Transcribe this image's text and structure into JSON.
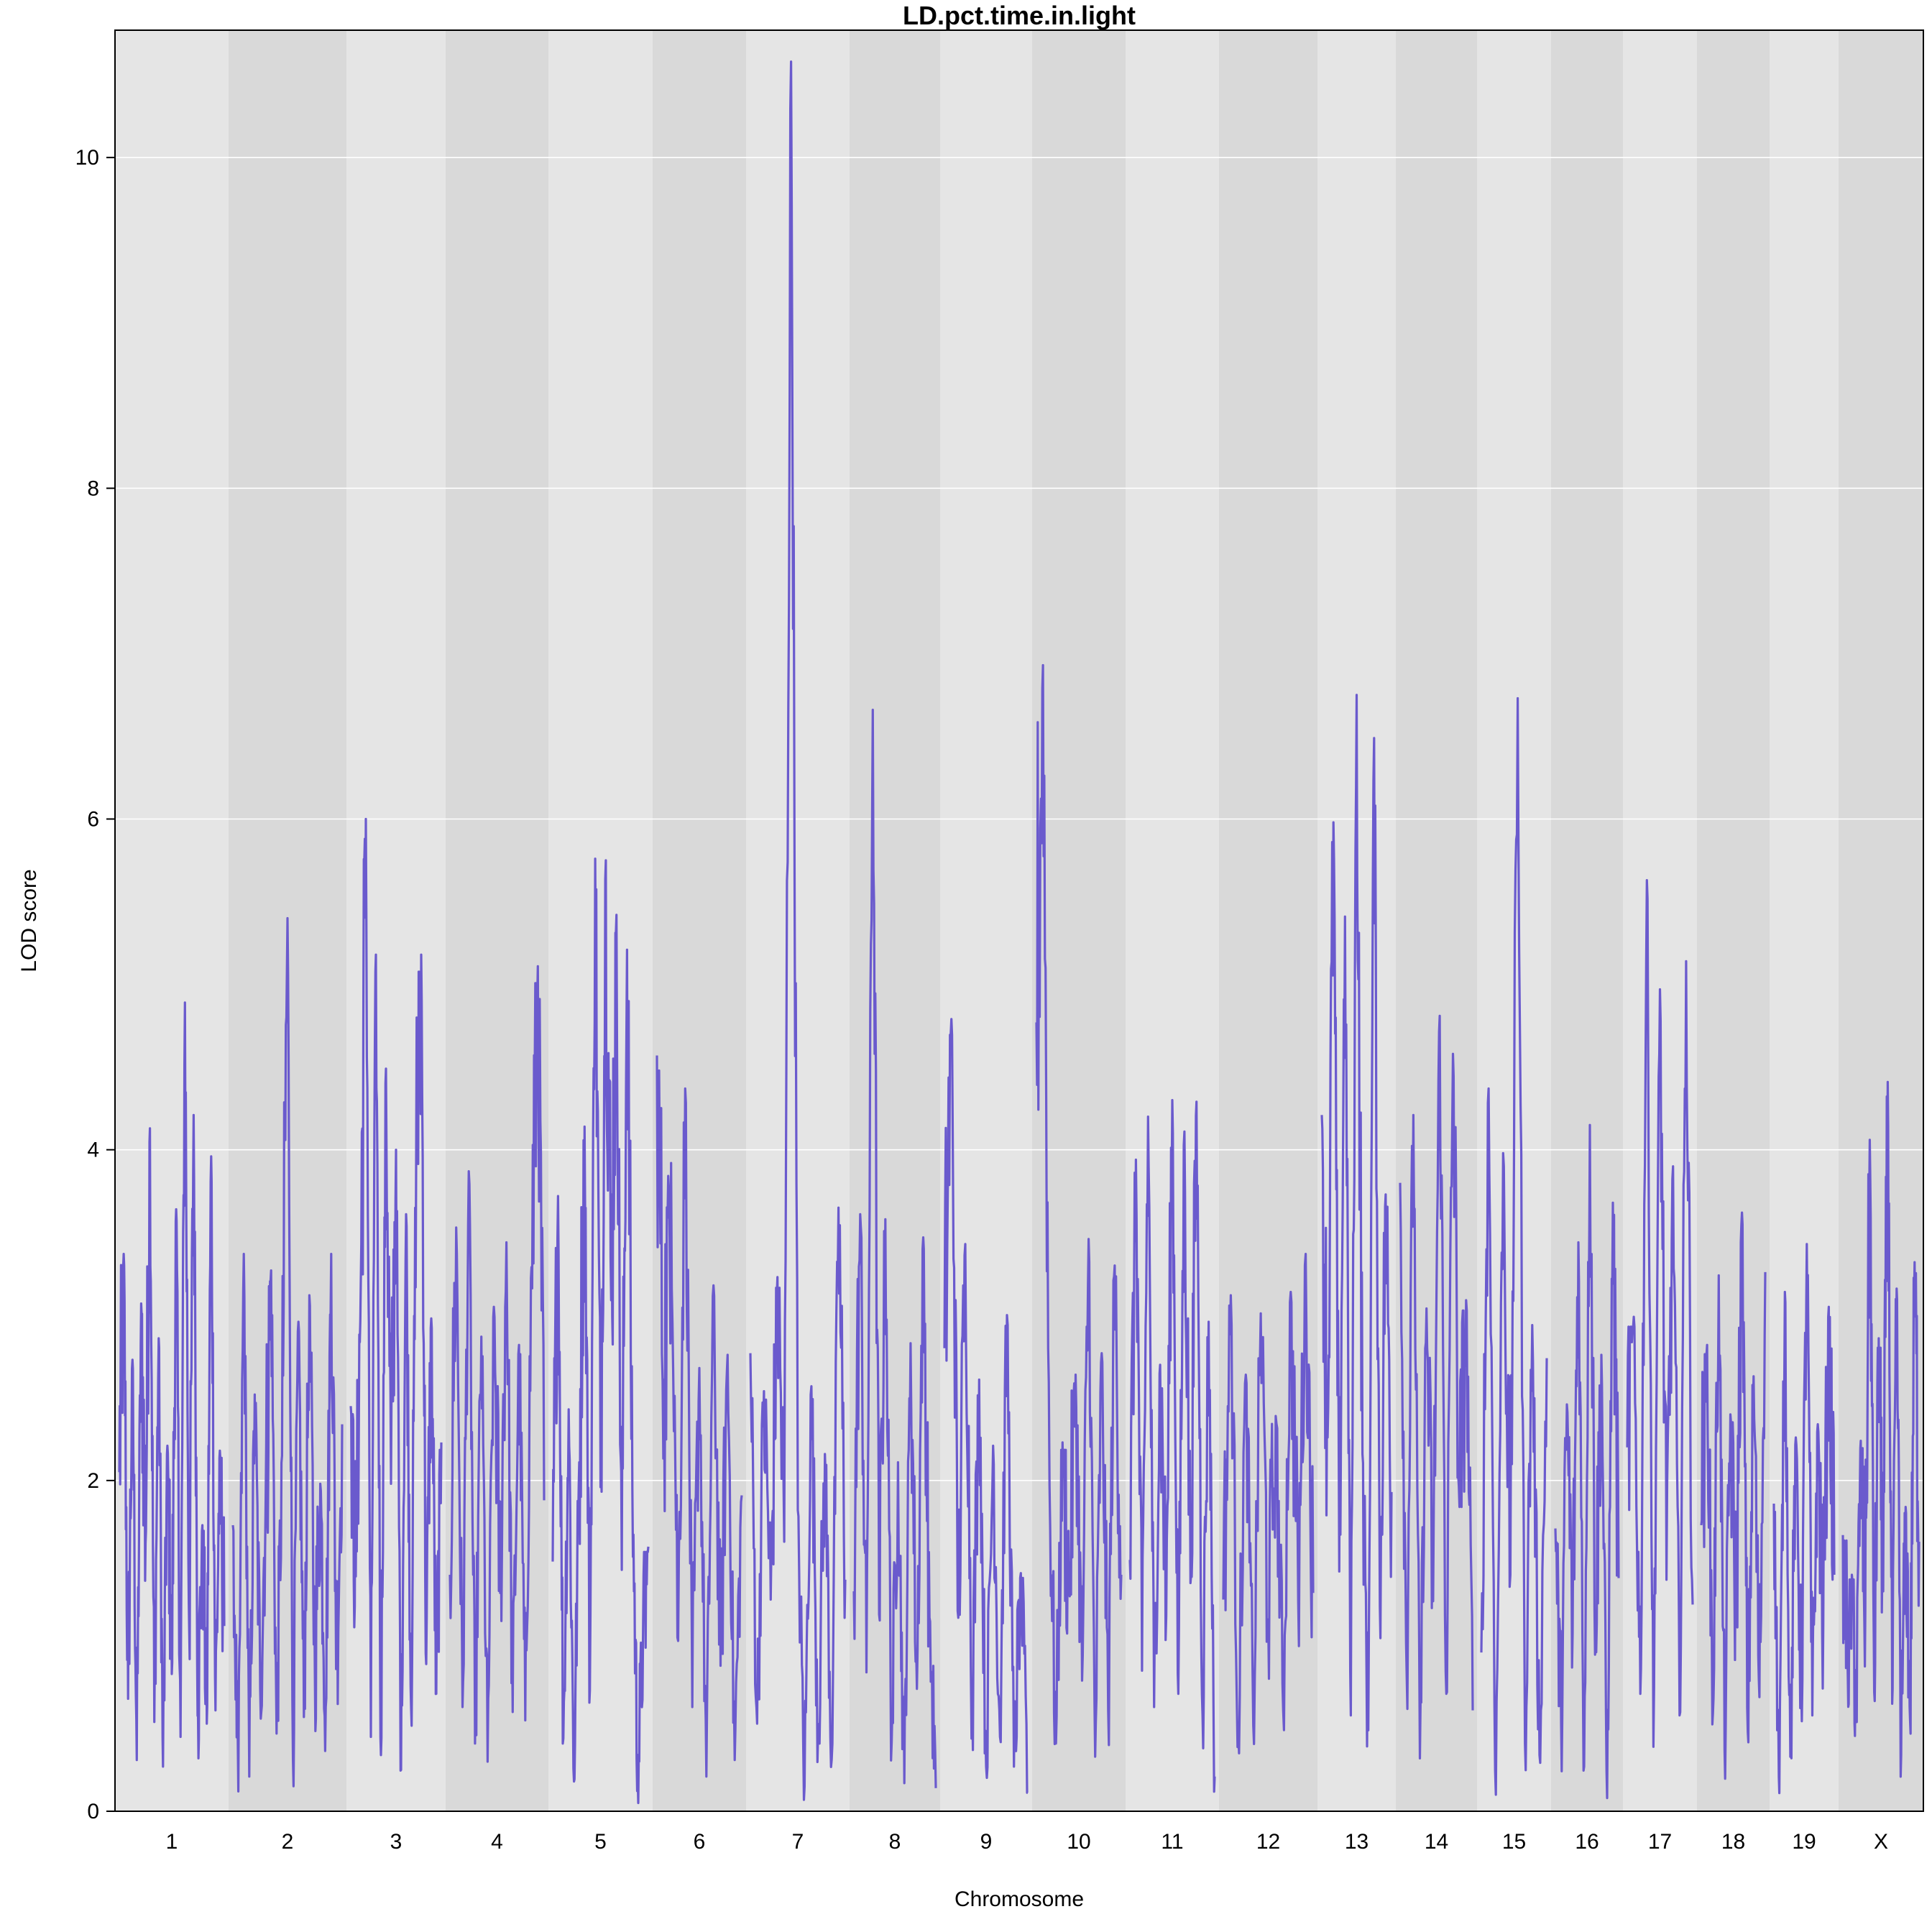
{
  "chart_data": {
    "type": "line",
    "title": "LD.pct.time.in.light",
    "xlabel": "Chromosome",
    "ylabel": "LOD score",
    "ylim": [
      0,
      10.77
    ],
    "yticks": [
      "0",
      "2",
      "4",
      "6",
      "8",
      "10"
    ],
    "grid": true,
    "legend": "none",
    "chromosomes": [
      "1",
      "2",
      "3",
      "4",
      "5",
      "6",
      "7",
      "8",
      "9",
      "10",
      "11",
      "12",
      "13",
      "14",
      "15",
      "16",
      "17",
      "18",
      "19",
      "X"
    ],
    "colors": {
      "line": "#6a5acd",
      "band_light": "#e5e5e5",
      "band_dark": "#d9d9d9",
      "grid": "#ffffff"
    },
    "series": [
      {
        "values": [
          [
            2.05,
            3.37,
            0.68,
            2.73,
            0.31,
            3.07,
            1.62,
            4.13,
            0.54,
            2.86,
            0.27,
            2.21,
            0.83,
            3.64,
            0.45,
            4.89,
            1.08,
            4.21,
            0.58,
            1.73,
            0.53,
            3.96,
            0.61,
            2.18,
            1.12
          ],
          [
            1.73,
            0.12,
            3.37,
            0.21,
            2.52,
            0.74,
            1.88,
            3.27,
            0.47,
            2.15,
            5.4,
            0.31,
            2.96,
            0.57,
            3.12,
            0.88,
            1.98,
            0.63,
            3.37,
            0.93,
            2.34
          ],
          [
            2.45,
            1.42,
            3.21,
            6.0,
            0.45,
            5.18,
            0.34,
            4.49,
            1.98,
            4.0,
            0.25,
            3.61,
            0.62,
            3.93,
            5.18,
            0.89,
            2.98,
            0.71,
            2.23
          ],
          [
            1.43,
            3.53,
            0.63,
            3.87,
            0.41,
            2.87,
            0.3,
            3.05,
            1.32,
            3.44,
            0.6,
            2.82,
            0.55,
            3.29,
            5.11,
            1.88
          ],
          [
            1.51,
            3.72,
            0.44,
            2.43,
            0.18,
            2.11,
            4.14,
            0.73,
            5.76,
            1.96,
            5.75,
            3.09,
            5.42,
            1.46,
            5.21,
            1.95,
            0.21,
            1.04,
            1.6
          ],
          [
            4.57,
            2.61,
            3.92,
            1.03,
            4.37,
            0.63,
            2.68,
            0.21,
            3.18,
            0.88,
            2.76,
            0.31,
            1.91
          ],
          [
            2.77,
            0.53,
            2.54,
            1.28,
            3.23,
            1.63,
            10.58,
            1.82,
            0.15,
            2.57,
            0.48,
            2.16,
            0.31,
            3.65,
            1.4
          ],
          [
            1.33,
            3.61,
            0.84,
            6.66,
            1.19,
            3.58,
            0.42,
            2.11,
            0.17,
            2.83,
            0.74,
            3.47,
            1.17,
            0.14
          ],
          [
            2.8,
            4.79,
            1.17,
            3.43,
            0.65,
            2.61,
            0.27,
            2.21,
            0.45,
            3.0,
            0.27,
            1.44,
            0.11
          ],
          [
            4.77,
            6.93,
            1.97,
            0.41,
            2.23,
            1.34,
            2.64,
            0.79,
            3.46,
            0.33,
            2.77,
            0.61,
            3.3,
            1.43
          ],
          [
            1.52,
            3.94,
            0.85,
            4.2,
            0.63,
            2.7,
            1.18,
            4.3,
            0.71,
            4.11,
            1.38,
            4.29,
            0.58,
            2.96,
            0.21
          ],
          [
            1.28,
            3.12,
            0.47,
            2.64,
            0.52,
            3.01,
            1.16,
            2.39,
            0.61,
            3.14,
            1.27,
            3.37,
            1.32
          ],
          [
            4.21,
            2.26,
            5.98,
            1.45,
            5.41,
            0.58,
            6.75,
            2.16,
            0.49,
            6.49,
            1.24,
            3.73,
            1.93
          ],
          [
            3.8,
            0.81,
            4.21,
            0.32,
            3.04,
            1.27,
            4.81,
            0.71,
            4.58,
            1.84,
            3.09,
            0.61
          ],
          [
            0.96,
            4.37,
            0.1,
            3.98,
            1.43,
            6.73,
            0.41,
            2.94,
            0.34,
            2.74
          ],
          [
            1.71,
            0.53,
            2.46,
            1.08,
            3.44,
            0.27,
            4.15,
            1.12,
            2.76,
            0.08,
            3.68,
            1.41
          ],
          [
            2.2,
            2.99,
            0.71,
            5.63,
            0.39,
            4.97,
            1.4,
            3.9,
            0.58,
            5.14,
            1.25
          ],
          [
            1.73,
            2.82,
            0.59,
            3.24,
            0.37,
            2.4,
            1.21,
            3.62,
            0.48,
            2.63,
            0.69,
            3.26
          ],
          [
            1.86,
            0.11,
            3.14,
            0.33,
            2.26,
            0.71,
            3.43,
            0.58,
            2.34,
            1.12,
            3.05,
            1.43
          ],
          [
            1.67,
            0.97,
            1.43,
            0.64,
            2.24,
            1.21,
            4.06,
            0.72,
            2.86,
            1.33,
            4.41,
            0.65,
            3.16,
            0.34,
            1.84,
            0.55,
            3.32,
            1.63
          ]
        ]
      }
    ]
  }
}
